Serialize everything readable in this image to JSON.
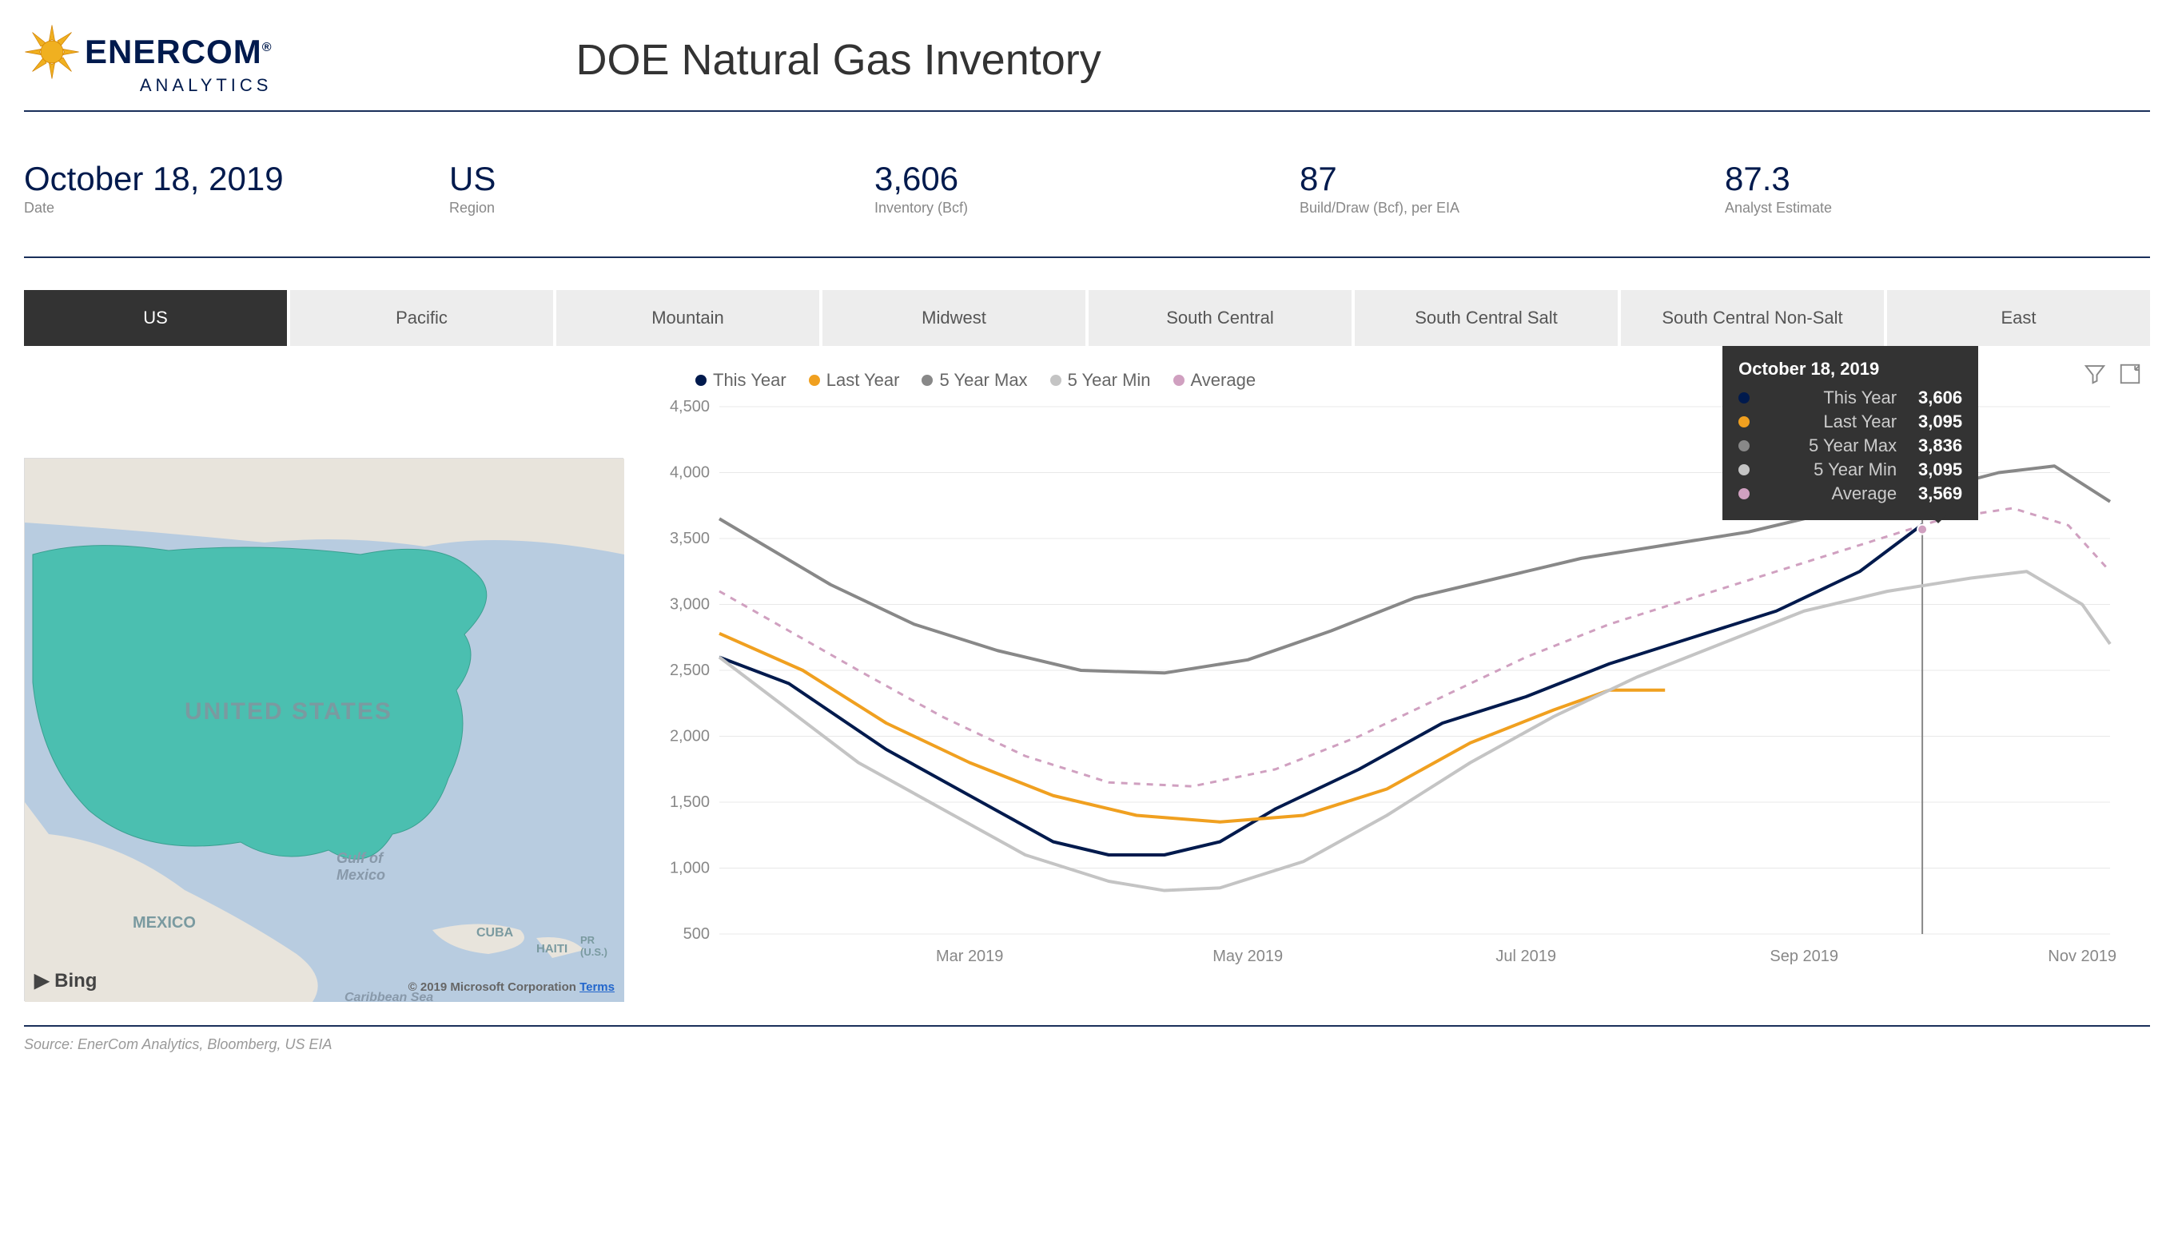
{
  "logo": {
    "name": "ENERCOM",
    "sub": "ANALYTICS",
    "reg": "®"
  },
  "title": "DOE Natural Gas Inventory",
  "colors": {
    "navy": "#001a4d",
    "divider": "#1a2f5a",
    "tab_active_bg": "#333333",
    "tab_bg": "#ededed",
    "this_year": "#001a4d",
    "last_year": "#f0a020",
    "max": "#888888",
    "min": "#c4c4c4",
    "avg": "#d0a0c0",
    "map_fill": "#4bbfb0",
    "map_water": "#b8cce0",
    "map_land": "#e8e4dc"
  },
  "stats": [
    {
      "val": "October 18, 2019",
      "lab": "Date"
    },
    {
      "val": "US",
      "lab": "Region"
    },
    {
      "val": "3,606",
      "lab": "Inventory (Bcf)"
    },
    {
      "val": "87",
      "lab": "Build/Draw (Bcf), per EIA"
    },
    {
      "val": "87.3",
      "lab": "Analyst Estimate"
    }
  ],
  "tabs": [
    "US",
    "Pacific",
    "Mountain",
    "Midwest",
    "South Central",
    "South Central Salt",
    "South Central Non-Salt",
    "East"
  ],
  "active_tab": 0,
  "map": {
    "country": "UNITED STATES",
    "gulf": "Gulf of\nMexico",
    "mexico": "MEXICO",
    "cuba": "CUBA",
    "haiti": "HAITI",
    "pr": "PR\n(U.S.)",
    "bing": "Bing",
    "copyright": "© 2019 Microsoft Corporation",
    "terms": "Terms",
    "sea": "Caribbean Sea"
  },
  "chart": {
    "type": "line",
    "ylim": [
      500,
      4500
    ],
    "ytick_step": 500,
    "yticks": [
      "500",
      "1,000",
      "1,500",
      "2,000",
      "2,500",
      "3,000",
      "3,500",
      "4,000",
      "4,500"
    ],
    "xticks": [
      "Mar 2019",
      "May 2019",
      "Jul 2019",
      "Sep 2019",
      "Nov 2019"
    ],
    "xtick_pos": [
      0.18,
      0.38,
      0.58,
      0.78,
      0.98
    ],
    "background": "#ffffff",
    "grid_color": "#e8e8e8",
    "cursor_x": 0.865,
    "legend": [
      {
        "label": "This Year",
        "color": "#001a4d"
      },
      {
        "label": "Last Year",
        "color": "#f0a020"
      },
      {
        "label": "5 Year Max",
        "color": "#888888"
      },
      {
        "label": "5 Year Min",
        "color": "#c4c4c4"
      },
      {
        "label": "Average",
        "color": "#d0a0c0"
      }
    ],
    "series": {
      "this_year": {
        "color": "#001a4d",
        "width": 4,
        "dash": "",
        "data": [
          [
            0,
            2600
          ],
          [
            0.05,
            2400
          ],
          [
            0.12,
            1900
          ],
          [
            0.18,
            1550
          ],
          [
            0.24,
            1200
          ],
          [
            0.28,
            1100
          ],
          [
            0.32,
            1100
          ],
          [
            0.36,
            1200
          ],
          [
            0.4,
            1450
          ],
          [
            0.46,
            1750
          ],
          [
            0.52,
            2100
          ],
          [
            0.58,
            2300
          ],
          [
            0.64,
            2550
          ],
          [
            0.7,
            2750
          ],
          [
            0.76,
            2950
          ],
          [
            0.82,
            3250
          ],
          [
            0.865,
            3606
          ]
        ]
      },
      "last_year": {
        "color": "#f0a020",
        "width": 4,
        "dash": "",
        "data": [
          [
            0,
            2780
          ],
          [
            0.06,
            2500
          ],
          [
            0.12,
            2100
          ],
          [
            0.18,
            1800
          ],
          [
            0.24,
            1550
          ],
          [
            0.3,
            1400
          ],
          [
            0.36,
            1350
          ],
          [
            0.42,
            1400
          ],
          [
            0.48,
            1600
          ],
          [
            0.54,
            1950
          ],
          [
            0.6,
            2200
          ],
          [
            0.64,
            2350
          ],
          [
            0.68,
            2350
          ]
        ]
      },
      "max": {
        "color": "#888888",
        "width": 4,
        "dash": "",
        "data": [
          [
            0,
            3650
          ],
          [
            0.04,
            3400
          ],
          [
            0.08,
            3150
          ],
          [
            0.14,
            2850
          ],
          [
            0.2,
            2650
          ],
          [
            0.26,
            2500
          ],
          [
            0.32,
            2480
          ],
          [
            0.38,
            2580
          ],
          [
            0.44,
            2800
          ],
          [
            0.5,
            3050
          ],
          [
            0.56,
            3200
          ],
          [
            0.62,
            3350
          ],
          [
            0.68,
            3450
          ],
          [
            0.74,
            3550
          ],
          [
            0.8,
            3700
          ],
          [
            0.86,
            3836
          ],
          [
            0.92,
            4000
          ],
          [
            0.96,
            4050
          ],
          [
            1.0,
            3780
          ]
        ]
      },
      "min": {
        "color": "#c4c4c4",
        "width": 4,
        "dash": "",
        "data": [
          [
            0,
            2600
          ],
          [
            0.05,
            2200
          ],
          [
            0.1,
            1800
          ],
          [
            0.16,
            1450
          ],
          [
            0.22,
            1100
          ],
          [
            0.28,
            900
          ],
          [
            0.32,
            830
          ],
          [
            0.36,
            850
          ],
          [
            0.42,
            1050
          ],
          [
            0.48,
            1400
          ],
          [
            0.54,
            1800
          ],
          [
            0.6,
            2150
          ],
          [
            0.66,
            2450
          ],
          [
            0.72,
            2700
          ],
          [
            0.78,
            2950
          ],
          [
            0.84,
            3100
          ],
          [
            0.9,
            3200
          ],
          [
            0.94,
            3250
          ],
          [
            0.98,
            3000
          ],
          [
            1.0,
            2700
          ]
        ]
      },
      "avg": {
        "color": "#d0a0c0",
        "width": 3,
        "dash": "8 8",
        "data": [
          [
            0,
            3100
          ],
          [
            0.05,
            2800
          ],
          [
            0.1,
            2500
          ],
          [
            0.16,
            2150
          ],
          [
            0.22,
            1850
          ],
          [
            0.28,
            1650
          ],
          [
            0.34,
            1620
          ],
          [
            0.4,
            1750
          ],
          [
            0.46,
            2000
          ],
          [
            0.52,
            2300
          ],
          [
            0.58,
            2600
          ],
          [
            0.64,
            2850
          ],
          [
            0.7,
            3050
          ],
          [
            0.76,
            3250
          ],
          [
            0.82,
            3450
          ],
          [
            0.88,
            3650
          ],
          [
            0.93,
            3730
          ],
          [
            0.97,
            3600
          ],
          [
            1.0,
            3250
          ]
        ]
      }
    }
  },
  "tooltip": {
    "title": "October 18, 2019",
    "rows": [
      {
        "label": "This Year",
        "val": "3,606",
        "color": "#001a4d"
      },
      {
        "label": "Last Year",
        "val": "3,095",
        "color": "#f0a020"
      },
      {
        "label": "5 Year Max",
        "val": "3,836",
        "color": "#888888"
      },
      {
        "label": "5 Year Min",
        "val": "3,095",
        "color": "#c4c4c4"
      },
      {
        "label": "Average",
        "val": "3,569",
        "color": "#d0a0c0"
      }
    ]
  },
  "source": "Source: EnerCom Analytics, Bloomberg, US EIA"
}
